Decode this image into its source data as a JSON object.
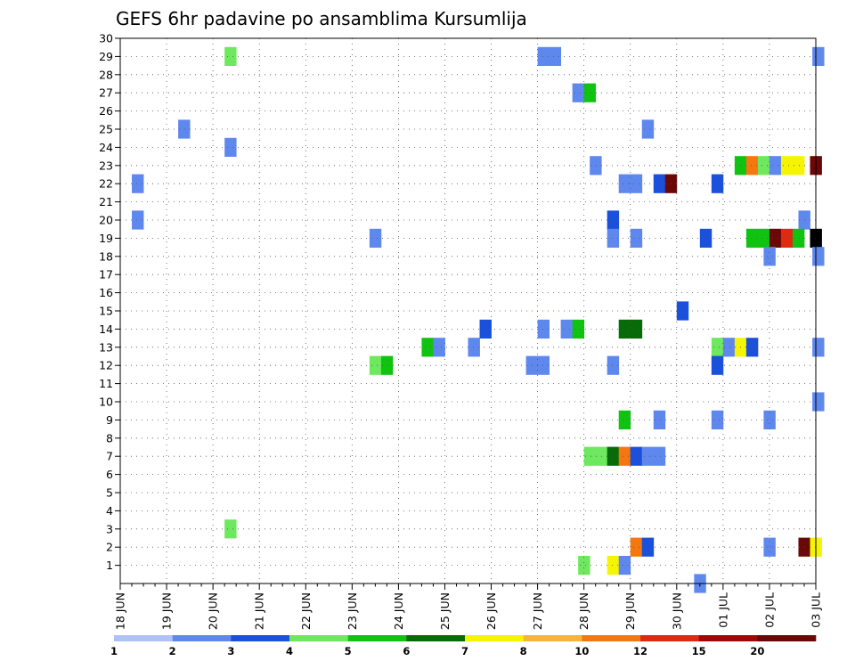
{
  "chart_data": {
    "type": "heatmap",
    "title": "GEFS 6hr padavine po ansamblima Kursumlija",
    "xlabel": "",
    "ylabel": "",
    "x_ticks": [
      "18 JUN",
      "19 JUN",
      "20 JUN",
      "21 JUN",
      "22 JUN",
      "23 JUN",
      "24 JUN",
      "25 JUN",
      "26 JUN",
      "27 JUN",
      "28 JUN",
      "29 JUN",
      "30 JUN",
      "01 JUL",
      "02 JUL",
      "03 JUL"
    ],
    "y_ticks": [
      1,
      2,
      3,
      4,
      5,
      6,
      7,
      8,
      9,
      10,
      11,
      12,
      13,
      14,
      15,
      16,
      17,
      18,
      19,
      20,
      21,
      22,
      23,
      24,
      25,
      26,
      27,
      28,
      29,
      30
    ],
    "x_range_steps": [
      0,
      60
    ],
    "y_range": [
      0,
      30
    ],
    "step_hours": 6,
    "grid": true,
    "legend_placement": "bottom",
    "legend": {
      "labels": [
        "1",
        "2",
        "3",
        "4",
        "5",
        "6",
        "7",
        "8",
        "10",
        "12",
        "15",
        "20",
        ""
      ],
      "colors": [
        "#afc2f5",
        "#5f88ee",
        "#1a50dc",
        "#6ee85e",
        "#11c311",
        "#076b07",
        "#f5f502",
        "#f8b43a",
        "#f5770f",
        "#de2a10",
        "#a00707",
        "#6a0808"
      ]
    },
    "cells": [
      [
        9,
        29,
        3
      ],
      [
        36,
        29,
        1
      ],
      [
        37,
        29,
        1
      ],
      [
        59.7,
        29,
        1
      ],
      [
        39,
        27,
        1
      ],
      [
        40,
        27,
        4
      ],
      [
        5,
        25,
        1
      ],
      [
        45,
        25,
        1
      ],
      [
        9,
        24,
        1
      ],
      [
        40.5,
        23,
        1
      ],
      [
        53,
        23,
        4
      ],
      [
        54,
        23,
        8
      ],
      [
        55,
        23,
        3
      ],
      [
        56,
        23,
        1
      ],
      [
        57,
        23,
        6
      ],
      [
        58,
        23,
        6
      ],
      [
        59.5,
        23,
        11
      ],
      [
        1,
        22,
        1
      ],
      [
        43,
        22,
        1
      ],
      [
        44,
        22,
        1
      ],
      [
        46,
        22,
        2
      ],
      [
        47,
        22,
        11
      ],
      [
        51,
        22,
        2
      ],
      [
        1,
        20,
        1
      ],
      [
        42,
        20,
        2
      ],
      [
        58.5,
        20,
        1
      ],
      [
        21.5,
        19,
        1
      ],
      [
        42,
        19,
        1
      ],
      [
        44,
        19,
        1
      ],
      [
        50,
        19,
        2
      ],
      [
        54,
        19,
        4
      ],
      [
        55,
        19,
        4
      ],
      [
        56,
        19,
        11
      ],
      [
        57,
        19,
        9
      ],
      [
        58,
        19,
        4
      ],
      [
        59.5,
        19,
        12
      ],
      [
        55.5,
        18,
        1
      ],
      [
        59.7,
        18,
        1
      ],
      [
        48,
        15,
        2
      ],
      [
        31,
        14,
        2
      ],
      [
        36,
        14,
        1
      ],
      [
        38,
        14,
        1
      ],
      [
        39,
        14,
        4
      ],
      [
        43,
        14,
        5
      ],
      [
        44,
        14,
        5
      ],
      [
        26,
        13,
        4
      ],
      [
        27,
        13,
        1
      ],
      [
        30,
        13,
        1
      ],
      [
        51,
        13,
        3
      ],
      [
        52,
        13,
        1
      ],
      [
        53,
        13,
        6
      ],
      [
        54,
        13,
        2
      ],
      [
        59.7,
        13,
        1
      ],
      [
        21.5,
        12,
        3
      ],
      [
        22.5,
        12,
        4
      ],
      [
        35,
        12,
        1
      ],
      [
        36,
        12,
        1
      ],
      [
        42,
        12,
        1
      ],
      [
        51,
        12,
        2
      ],
      [
        59.7,
        10,
        1
      ],
      [
        43,
        9,
        4
      ],
      [
        46,
        9,
        1
      ],
      [
        51,
        9,
        1
      ],
      [
        55.5,
        9,
        1
      ],
      [
        40,
        7,
        3
      ],
      [
        41,
        7,
        3
      ],
      [
        42,
        7,
        5
      ],
      [
        43,
        7,
        8
      ],
      [
        44,
        7,
        2
      ],
      [
        45,
        7,
        1
      ],
      [
        46,
        7,
        1
      ],
      [
        9,
        3,
        3
      ],
      [
        44,
        2,
        8
      ],
      [
        45,
        2,
        2
      ],
      [
        55.5,
        2,
        1
      ],
      [
        58.5,
        2,
        11
      ],
      [
        59.5,
        2,
        6
      ],
      [
        39.5,
        1,
        3
      ],
      [
        42,
        1,
        6
      ],
      [
        43,
        1,
        1
      ],
      [
        49.5,
        0,
        1
      ]
    ]
  }
}
